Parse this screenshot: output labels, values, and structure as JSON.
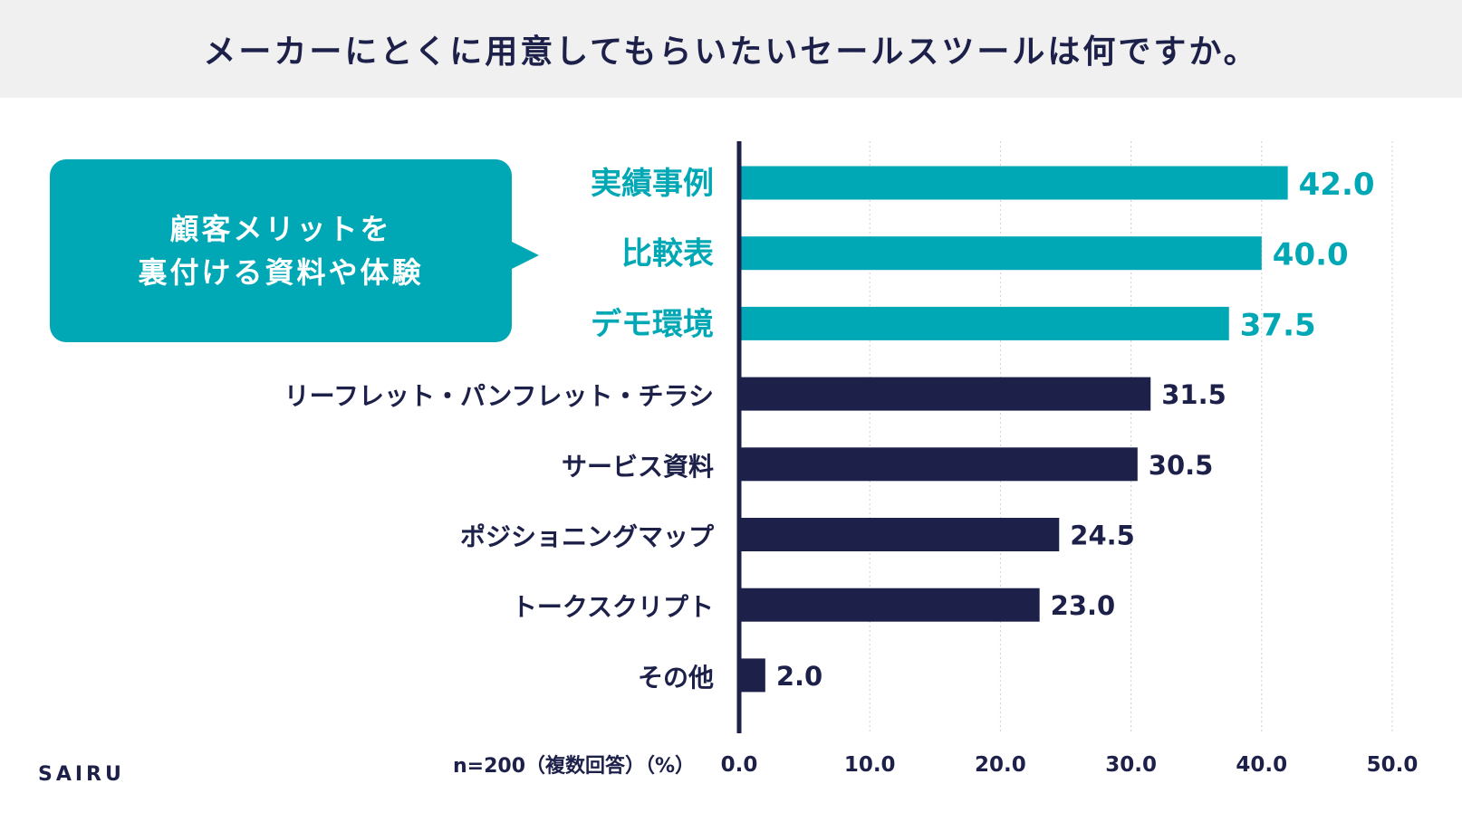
{
  "title": "メーカーにとくに用意してもらいたいセールスツールは何ですか。",
  "callout": {
    "line1": "顧客メリットを",
    "line2": "裏付ける資料や体験"
  },
  "note": "n=200（複数回答）（%）",
  "logo": "SAIRU",
  "colors": {
    "highlight": "#00a8b5",
    "normal": "#1d2149",
    "header_bg": "#f0f0f0"
  },
  "chart_data": {
    "type": "bar",
    "orientation": "horizontal",
    "categories": [
      "実績事例",
      "比較表",
      "デモ環境",
      "リーフレット・パンフレット・チラシ",
      "サービス資料",
      "ポジショニングマップ",
      "トークスクリプト",
      "その他"
    ],
    "values": [
      42.0,
      40.0,
      37.5,
      31.5,
      30.5,
      24.5,
      23.0,
      2.0
    ],
    "value_labels": [
      "42.0",
      "40.0",
      "37.5",
      "31.5",
      "30.5",
      "24.5",
      "23.0",
      "2.0"
    ],
    "highlighted": [
      true,
      true,
      true,
      false,
      false,
      false,
      false,
      false
    ],
    "xlim": [
      0,
      50
    ],
    "ticks": [
      "0.0",
      "10.0",
      "20.0",
      "30.0",
      "40.0",
      "50.0"
    ],
    "grid": true
  }
}
